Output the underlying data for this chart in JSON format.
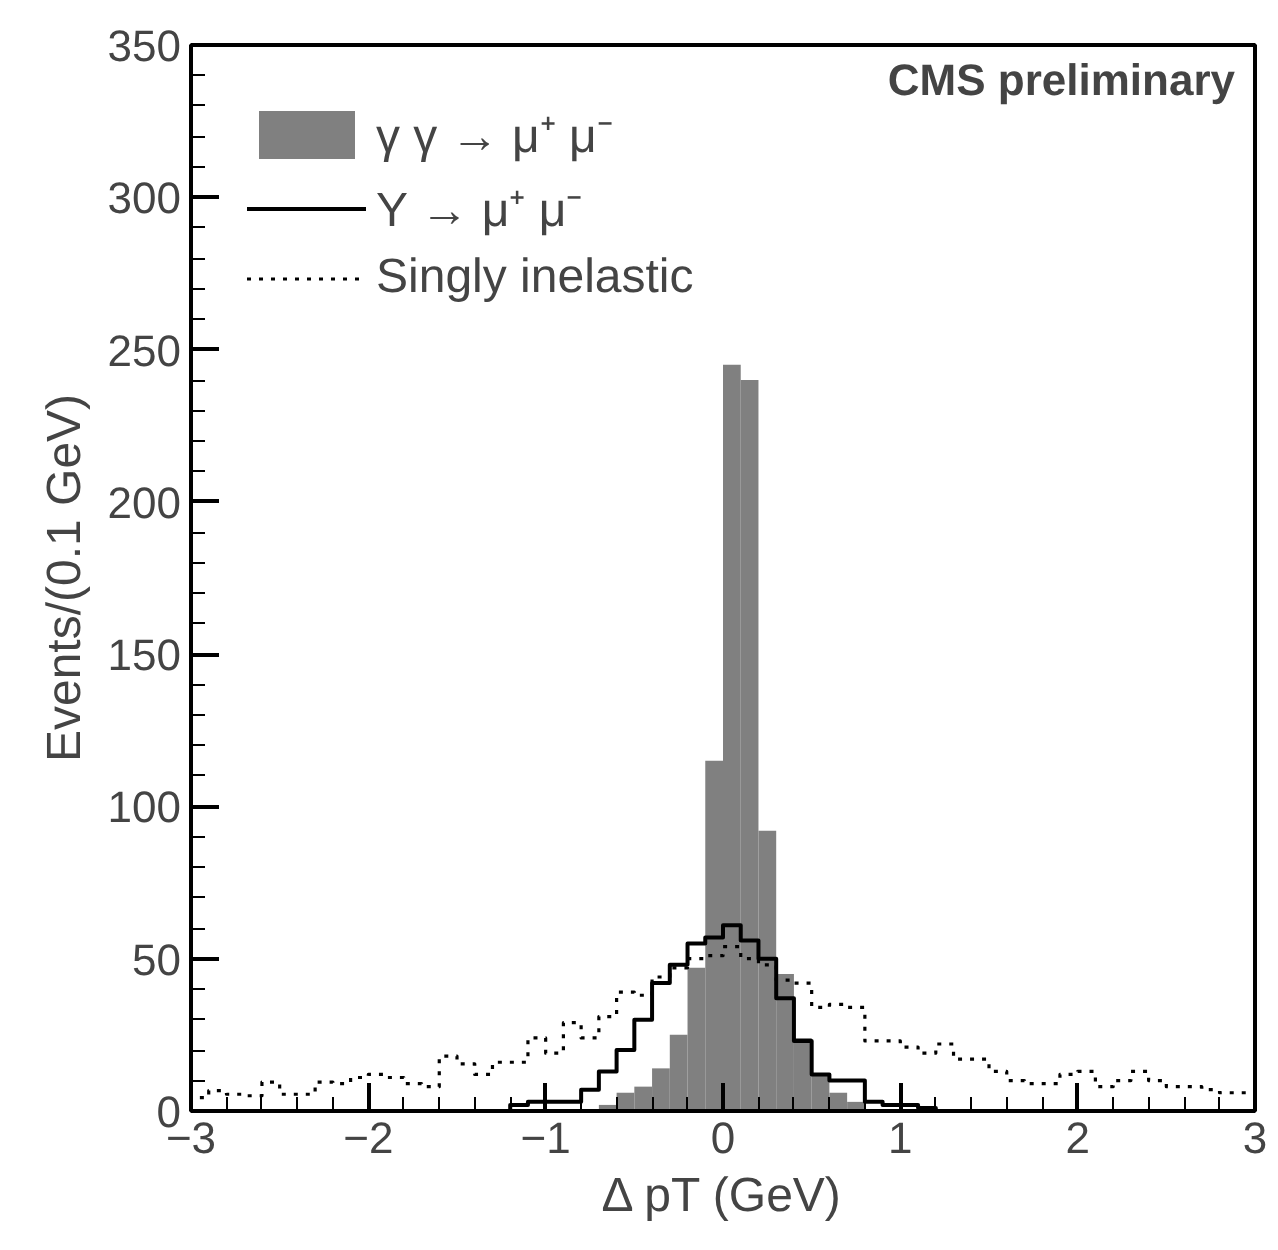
{
  "chart_data": {
    "type": "histogram",
    "xlabel": "Δ pT (GeV)",
    "ylabel": "Events/(0.1 GeV)",
    "bins": [
      -3.0,
      -2.9,
      -2.8,
      -2.7,
      -2.6,
      -2.5,
      -2.4,
      -2.3,
      -2.2,
      -2.1,
      -2.0,
      -1.9,
      -1.8,
      -1.7,
      -1.6,
      -1.5,
      -1.4,
      -1.3,
      -1.2,
      -1.1,
      -1.0,
      -0.9,
      -0.8,
      -0.7,
      -0.6,
      -0.5,
      -0.4,
      -0.3,
      -0.2,
      -0.1,
      0.0,
      0.1,
      0.2,
      0.3,
      0.4,
      0.5,
      0.6,
      0.7,
      0.8,
      0.9,
      1.0,
      1.1,
      1.2,
      1.3,
      1.4,
      1.5,
      1.6,
      1.7,
      1.8,
      1.9,
      2.0,
      2.1,
      2.2,
      2.3,
      2.4,
      2.5,
      2.6,
      2.7,
      2.8,
      2.9,
      3.0
    ],
    "series": [
      {
        "name": "γ γ → μ⁺ μ⁻",
        "color": "#808080",
        "values": [
          0,
          0,
          0,
          0,
          0,
          0,
          0,
          0,
          0,
          0,
          0,
          0,
          0,
          0,
          0,
          0,
          0,
          0,
          0,
          0,
          0,
          0,
          null,
          2,
          6,
          8,
          14,
          25,
          47,
          115,
          245,
          240,
          92,
          45,
          24,
          12,
          6,
          3,
          null,
          null,
          0,
          0,
          0,
          0,
          0,
          0,
          0,
          0,
          0,
          0,
          0,
          0,
          0,
          0,
          0,
          0,
          0,
          0,
          0,
          0
        ]
      },
      {
        "name": "Υ → μ⁺ μ⁻",
        "type": "step",
        "line_style": "solid",
        "color": "#000000",
        "x": [
          -2.95,
          -2.85,
          -2.75,
          -2.65,
          -2.55,
          -2.45,
          -2.35,
          -2.25,
          -2.15,
          -2.05,
          -1.95,
          -1.85,
          -1.75,
          -1.65,
          -1.55,
          -1.45,
          -1.35,
          -1.25,
          -1.15,
          -1.05,
          -0.95,
          -0.85,
          -0.75,
          -0.65,
          -0.55,
          -0.45,
          -0.35,
          -0.25,
          -0.15,
          -0.05,
          0.05,
          0.15,
          0.25,
          0.35,
          0.45,
          0.55,
          0.65,
          0.75,
          0.85,
          0.95,
          1.05,
          1.15,
          1.25,
          1.35,
          1.45,
          1.55,
          1.65,
          1.75,
          1.85,
          1.95,
          2.05,
          2.15,
          2.25,
          2.35,
          2.45,
          2.55,
          2.65,
          2.75,
          2.85,
          2.95
        ],
        "values": [
          0,
          0,
          0,
          0,
          0,
          0,
          0,
          0,
          0,
          0,
          0,
          0,
          0,
          0,
          0,
          0,
          0,
          0,
          2,
          3,
          3,
          3,
          7,
          13,
          20,
          30,
          42,
          48,
          55,
          57,
          61,
          56,
          50,
          37,
          23,
          12,
          10,
          10,
          3,
          2,
          2,
          1,
          0,
          0,
          0,
          0,
          0,
          0,
          0,
          0,
          0,
          0,
          0,
          0,
          0,
          0,
          0,
          0,
          0,
          0
        ]
      },
      {
        "name": "Singly inelastic",
        "type": "step",
        "line_style": "dotted",
        "color": "#000000",
        "x": [
          -2.95,
          -2.85,
          -2.75,
          -2.65,
          -2.55,
          -2.45,
          -2.35,
          -2.25,
          -2.15,
          -2.05,
          -1.95,
          -1.85,
          -1.75,
          -1.65,
          -1.55,
          -1.45,
          -1.35,
          -1.25,
          -1.15,
          -1.05,
          -0.95,
          -0.85,
          -0.75,
          -0.65,
          -0.55,
          -0.45,
          -0.35,
          -0.25,
          -0.15,
          -0.05,
          0.05,
          0.15,
          0.25,
          0.35,
          0.45,
          0.55,
          0.65,
          0.75,
          0.85,
          0.95,
          1.05,
          1.15,
          1.25,
          1.35,
          1.45,
          1.55,
          1.65,
          1.75,
          1.85,
          1.95,
          2.05,
          2.15,
          2.25,
          2.35,
          2.45,
          2.55,
          2.65,
          2.75,
          2.85,
          2.95
        ],
        "values": [
          4.4,
          6.7,
          5.5,
          5,
          9.5,
          5.5,
          5.5,
          9.5,
          9,
          11,
          12,
          11,
          9,
          8,
          18,
          15.5,
          12,
          16,
          16,
          24,
          19,
          29,
          24,
          31,
          39,
          38,
          44,
          47,
          50,
          51,
          54,
          50,
          48,
          43,
          42,
          34,
          35,
          34,
          23,
          23,
          21,
          19,
          22,
          17,
          17,
          13,
          10,
          9,
          9,
          12,
          13,
          8,
          10,
          13,
          10,
          8,
          8,
          7,
          6,
          6
        ]
      }
    ],
    "xlim": [
      -3,
      3
    ],
    "ylim": [
      0,
      350
    ],
    "xticks": [
      -3,
      -2,
      -1,
      0,
      1,
      2,
      3
    ],
    "yticks": [
      0,
      50,
      100,
      150,
      200,
      250,
      300,
      350
    ],
    "annotations": [
      "CMS preliminary"
    ],
    "legend": "top left",
    "grid": false
  }
}
